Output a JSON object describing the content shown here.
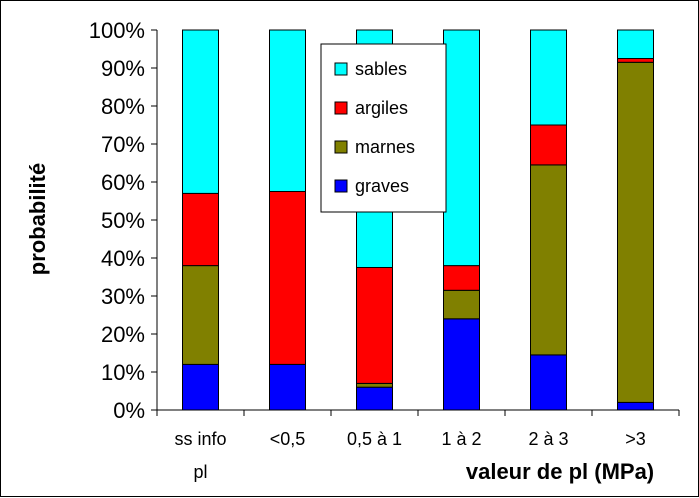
{
  "chart_data": {
    "type": "bar",
    "stacked": true,
    "normalized": true,
    "categories": [
      [
        "ss info",
        "pl"
      ],
      [
        "<0,5"
      ],
      [
        "0,5 à 1"
      ],
      [
        "1 à 2"
      ],
      [
        "2 à 3"
      ],
      [
        ">3"
      ]
    ],
    "xlabel": "valeur de pl (MPa)",
    "ylabel": "probabilité",
    "ylim": [
      0,
      100
    ],
    "yticks": [
      "0%",
      "10%",
      "20%",
      "30%",
      "40%",
      "50%",
      "60%",
      "70%",
      "80%",
      "90%",
      "100%"
    ],
    "legend_position": "top-center",
    "grid": false,
    "series": [
      {
        "name": "graves",
        "color": "#0000FF",
        "values": [
          12,
          12,
          6,
          24,
          14.5,
          2
        ]
      },
      {
        "name": "marnes",
        "color": "#808000",
        "values": [
          26,
          0,
          1,
          7.5,
          50,
          89.5
        ]
      },
      {
        "name": "argiles",
        "color": "#FF0000",
        "values": [
          19,
          45.5,
          30.5,
          6.5,
          10.5,
          1
        ]
      },
      {
        "name": "sables",
        "color": "#00FFFF",
        "values": [
          43,
          42.5,
          62.5,
          62,
          25,
          7.5
        ]
      }
    ],
    "legend_order": [
      "sables",
      "argiles",
      "marnes",
      "graves"
    ]
  }
}
